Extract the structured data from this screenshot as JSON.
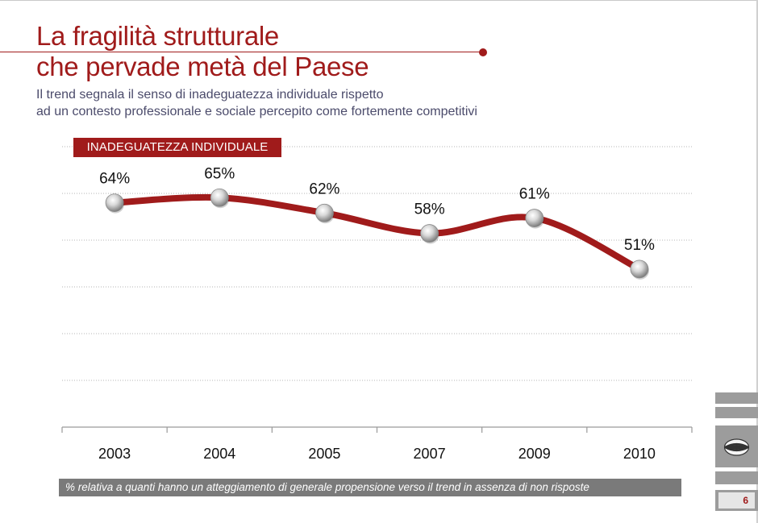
{
  "slide": {
    "title_line1": "La fragilità strutturale",
    "title_line2": "che pervade metà del Paese",
    "subtitle_line1": "Il trend segnala il senso di inadeguatezza individuale rispetto",
    "subtitle_line2": "ad un contesto professionale e sociale percepito come fortemente competitivi",
    "footnote": "% relativa a quanti hanno un atteggiamento di generale propensione verso  il trend in assenza di non risposte",
    "page_number": "6",
    "logo_icon": "globe-logo-icon"
  },
  "colors": {
    "accent": "#a01b1b",
    "subtitle": "#4b4b6b",
    "side_gray": "#9c9c9c",
    "grid": "#b5b5b5"
  },
  "chart_data": {
    "type": "line",
    "title": "INADEGUATEZZA INDIVIDUALE",
    "categories": [
      "2003",
      "2004",
      "2005",
      "2007",
      "2009",
      "2010"
    ],
    "series": [
      {
        "values": [
          64,
          65,
          62,
          58,
          61,
          51
        ]
      }
    ],
    "data_labels": [
      "64%",
      "65%",
      "62%",
      "58%",
      "61%",
      "51%"
    ],
    "ylim": [
      20,
      75
    ],
    "grid": true,
    "smooth": true,
    "line_color": "#a01b1b"
  }
}
